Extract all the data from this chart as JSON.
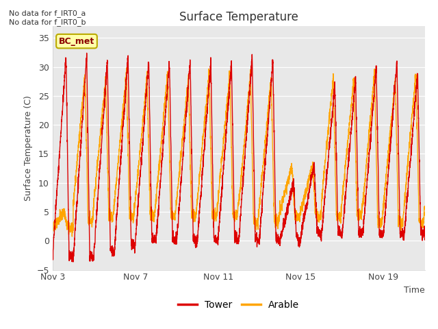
{
  "title": "Surface Temperature",
  "xlabel": "Time",
  "ylabel": "Surface Temperature (C)",
  "ylim": [
    -5,
    37
  ],
  "yticks": [
    -5,
    0,
    5,
    10,
    15,
    20,
    25,
    30,
    35
  ],
  "plot_bg_color": "#e8e8e8",
  "tower_color": "#dd0000",
  "arable_color": "#ffa500",
  "annotation_text": "No data for f_IRT0_a\nNo data for f_IRT0_b",
  "bc_met_label": "BC_met",
  "x_tick_labels": [
    "Nov 3",
    "Nov 7",
    "Nov 11",
    "Nov 15",
    "Nov 19"
  ],
  "x_tick_positions": [
    3,
    7,
    11,
    15,
    19
  ],
  "xmin": 3,
  "xmax": 21
}
